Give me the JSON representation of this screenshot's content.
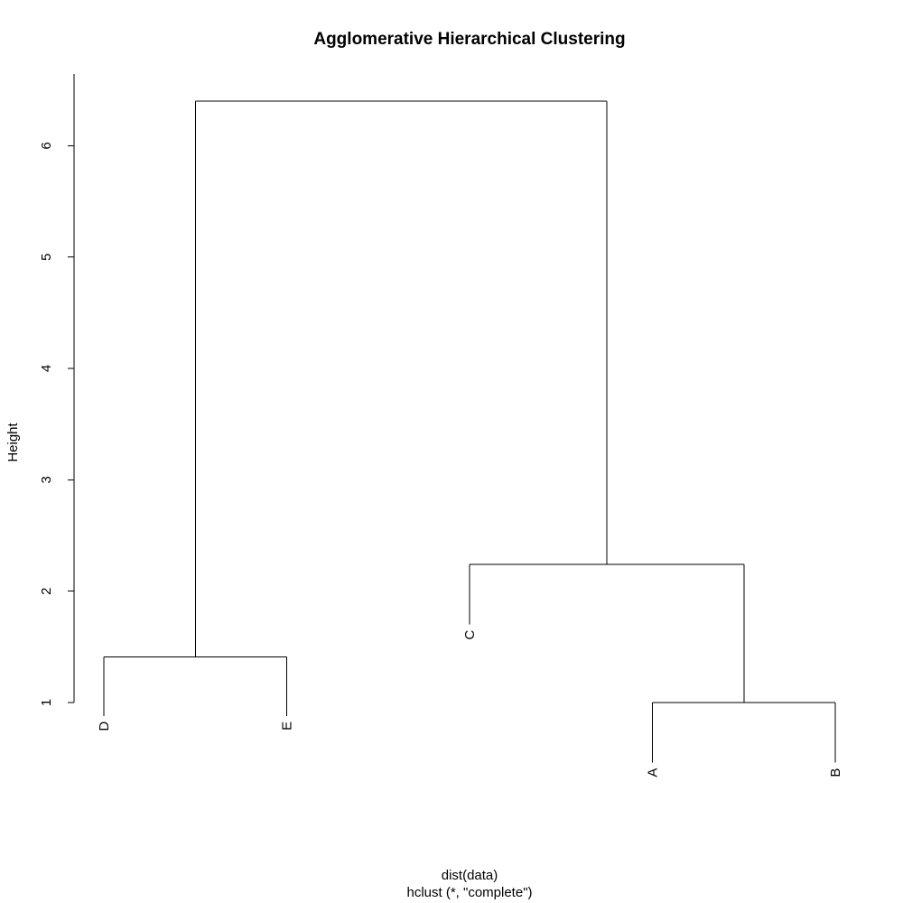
{
  "chart_data": {
    "type": "dendrogram",
    "title": "Agglomerative Hierarchical Clustering",
    "ylabel": "Height",
    "xlabel": "dist(data)",
    "sublabel": "hclust (*, \"complete\")",
    "ylim": [
      1,
      6.4
    ],
    "yticks": [
      1,
      2,
      3,
      4,
      5,
      6
    ],
    "leaf_order": [
      "D",
      "E",
      "C",
      "A",
      "B"
    ],
    "leaf_label_heights": {
      "D": 0.88,
      "E": 0.88,
      "C": 1.7,
      "A": 0.46,
      "B": 0.46
    },
    "merges": [
      {
        "left": "A",
        "right": "B",
        "height": 1.0
      },
      {
        "left": "D",
        "right": "E",
        "height": 1.41
      },
      {
        "left": "C",
        "right": "A+B",
        "height": 2.24
      },
      {
        "left": "D+E",
        "right": "C+A+B",
        "height": 6.4
      }
    ],
    "grid": false,
    "legend": "none"
  }
}
